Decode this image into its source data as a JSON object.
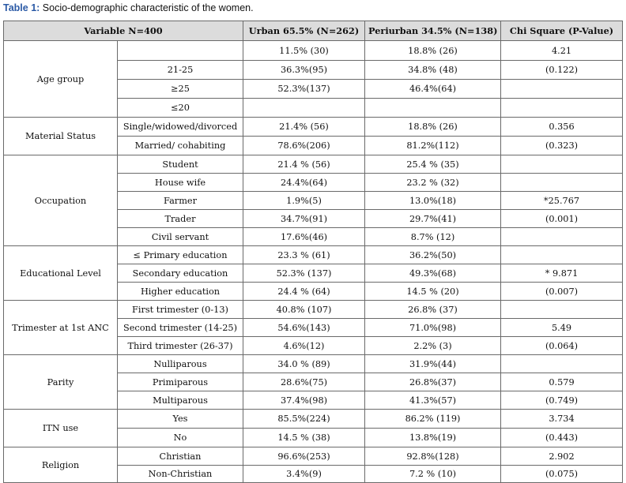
{
  "caption": {
    "label": "Table 1:",
    "text": " Socio-demographic characteristic of the women."
  },
  "headers": [
    "Variable N=400",
    "Urban 65.5% (N=262)",
    "Periurban 34.5% (N=138)",
    "Chi Square (P-Value)"
  ],
  "groups": [
    {
      "name": "Age group",
      "rows": [
        [
          "",
          "11.5% (30)",
          "18.8% (26)",
          "4.21"
        ],
        [
          "21-25",
          "36.3%(95)",
          "34.8% (48)",
          "(0.122)"
        ],
        [
          "≥25",
          "52.3%(137)",
          "46.4%(64)",
          ""
        ],
        [
          "≤20",
          "",
          "",
          ""
        ]
      ]
    },
    {
      "name": "Material Status",
      "rows": [
        [
          "Single/widowed/divorced",
          "21.4% (56)",
          "18.8% (26)",
          "0.356"
        ],
        [
          "Married/ cohabiting",
          "78.6%(206)",
          "81.2%(112)",
          "(0.323)"
        ]
      ]
    },
    {
      "name": "Occupation",
      "rows": [
        [
          "Student",
          "21.4 % (56)",
          "25.4 % (35)",
          ""
        ],
        [
          "House wife",
          "24.4%(64)",
          "23.2 % (32)",
          ""
        ],
        [
          "Farmer",
          "1.9%(5)",
          "13.0%(18)",
          "*25.767"
        ],
        [
          "Trader",
          "34.7%(91)",
          "29.7%(41)",
          "(0.001)"
        ],
        [
          "Civil servant",
          "17.6%(46)",
          "8.7% (12)",
          ""
        ]
      ]
    },
    {
      "name": "Educational Level",
      "rows": [
        [
          "≤ Primary education",
          "23.3 % (61)",
          "36.2%(50)",
          ""
        ],
        [
          "Secondary education",
          "52.3% (137)",
          "49.3%(68)",
          "* 9.871"
        ],
        [
          "Higher education",
          "24.4 % (64)",
          "14.5 % (20)",
          "(0.007)"
        ]
      ]
    },
    {
      "name": "Trimester at 1st ANC",
      "rows": [
        [
          "First trimester (0-13)",
          "40.8% (107)",
          "26.8% (37)",
          ""
        ],
        [
          "Second trimester (14-25)",
          "54.6%(143)",
          "71.0%(98)",
          "5.49"
        ],
        [
          "Third trimester (26-37)",
          "4.6%(12)",
          "2.2% (3)",
          "(0.064)"
        ]
      ]
    },
    {
      "name": "Parity",
      "rows": [
        [
          "Nulliparous",
          "34.0 % (89)",
          "31.9%(44)",
          ""
        ],
        [
          "Primiparous",
          "28.6%(75)",
          "26.8%(37)",
          "0.579"
        ],
        [
          "Multiparous",
          "37.4%(98)",
          "41.3%(57)",
          "(0.749)"
        ]
      ]
    },
    {
      "name": "ITN use",
      "rows": [
        [
          "Yes",
          "85.5%(224)",
          "86.2% (119)",
          "3.734"
        ],
        [
          "No",
          "14.5 % (38)",
          "13.8%(19)",
          "(0.443)"
        ]
      ]
    },
    {
      "name": "Religion",
      "rows": [
        [
          "Christian",
          "96.6%(253)",
          "92.8%(128)",
          "2.902"
        ],
        [
          "Non-Christian",
          "3.4%(9)",
          "7.2 % (10)",
          "(0.075)"
        ]
      ]
    }
  ]
}
